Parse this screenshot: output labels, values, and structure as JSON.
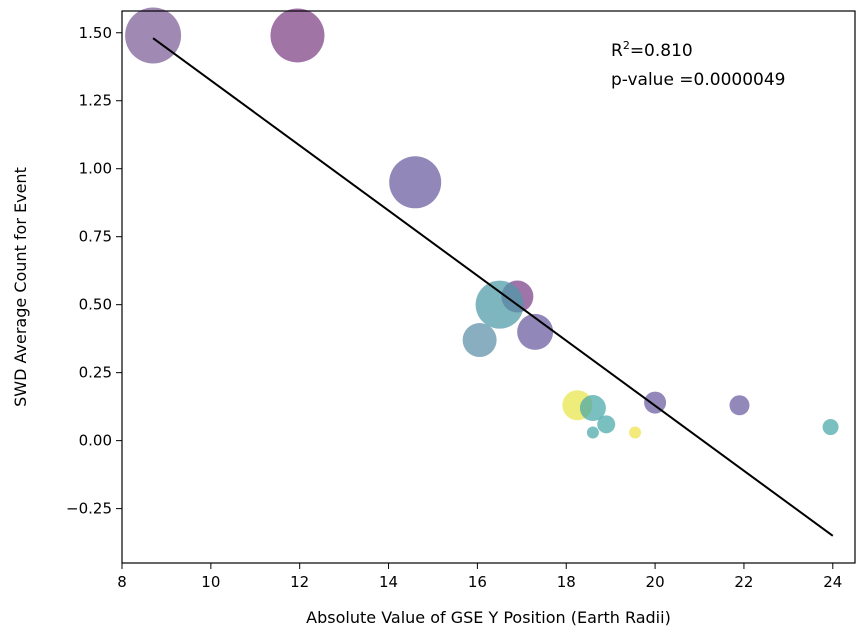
{
  "chart_data": {
    "type": "scatter",
    "title": "",
    "xlabel": "Absolute Value of GSE Y Position (Earth Radii)",
    "ylabel": "SWD Average Count for Event",
    "xlim": [
      8.0,
      24.5
    ],
    "ylim": [
      -0.45,
      1.58
    ],
    "xticks": [
      8,
      10,
      12,
      14,
      16,
      18,
      20,
      22,
      24
    ],
    "yticks": [
      -0.25,
      0.0,
      0.25,
      0.5,
      0.75,
      1.0,
      1.25,
      1.5
    ],
    "xtick_labels": [
      "8",
      "10",
      "12",
      "14",
      "16",
      "18",
      "20",
      "22",
      "24"
    ],
    "ytick_labels": [
      "−0.25",
      "0.00",
      "0.25",
      "0.50",
      "0.75",
      "1.00",
      "1.25",
      "1.50"
    ],
    "grid": false,
    "points": [
      {
        "x": 8.7,
        "y": 1.49,
        "size": 28,
        "color": "#7b5b95"
      },
      {
        "x": 11.95,
        "y": 1.49,
        "size": 27,
        "color": "#7d3f84"
      },
      {
        "x": 14.6,
        "y": 0.95,
        "size": 26,
        "color": "#665a9e"
      },
      {
        "x": 16.05,
        "y": 0.37,
        "size": 17,
        "color": "#5a8fa6"
      },
      {
        "x": 16.9,
        "y": 0.53,
        "size": 16,
        "color": "#7a3f86"
      },
      {
        "x": 16.5,
        "y": 0.5,
        "size": 24,
        "color": "#4c9aa8"
      },
      {
        "x": 17.3,
        "y": 0.4,
        "size": 18,
        "color": "#665a9e"
      },
      {
        "x": 18.25,
        "y": 0.13,
        "size": 15,
        "color": "#e8e64a"
      },
      {
        "x": 18.6,
        "y": 0.12,
        "size": 13,
        "color": "#46a8a8"
      },
      {
        "x": 18.9,
        "y": 0.06,
        "size": 9,
        "color": "#46a8a8"
      },
      {
        "x": 18.6,
        "y": 0.03,
        "size": 6,
        "color": "#46a8a8"
      },
      {
        "x": 19.55,
        "y": 0.03,
        "size": 6,
        "color": "#f0e24a"
      },
      {
        "x": 20.0,
        "y": 0.14,
        "size": 11,
        "color": "#6a5aa0"
      },
      {
        "x": 21.9,
        "y": 0.13,
        "size": 10,
        "color": "#6a5aa0"
      },
      {
        "x": 23.95,
        "y": 0.05,
        "size": 8,
        "color": "#46a8a8"
      }
    ],
    "fit_line": {
      "x": [
        8.7,
        24.0
      ],
      "y": [
        1.48,
        -0.35
      ],
      "color": "#000000"
    },
    "annotations": {
      "r2_label": "R",
      "r2_sup": "2",
      "r2_value": "=0.810",
      "p_value": "p-value =0.0000049"
    }
  }
}
